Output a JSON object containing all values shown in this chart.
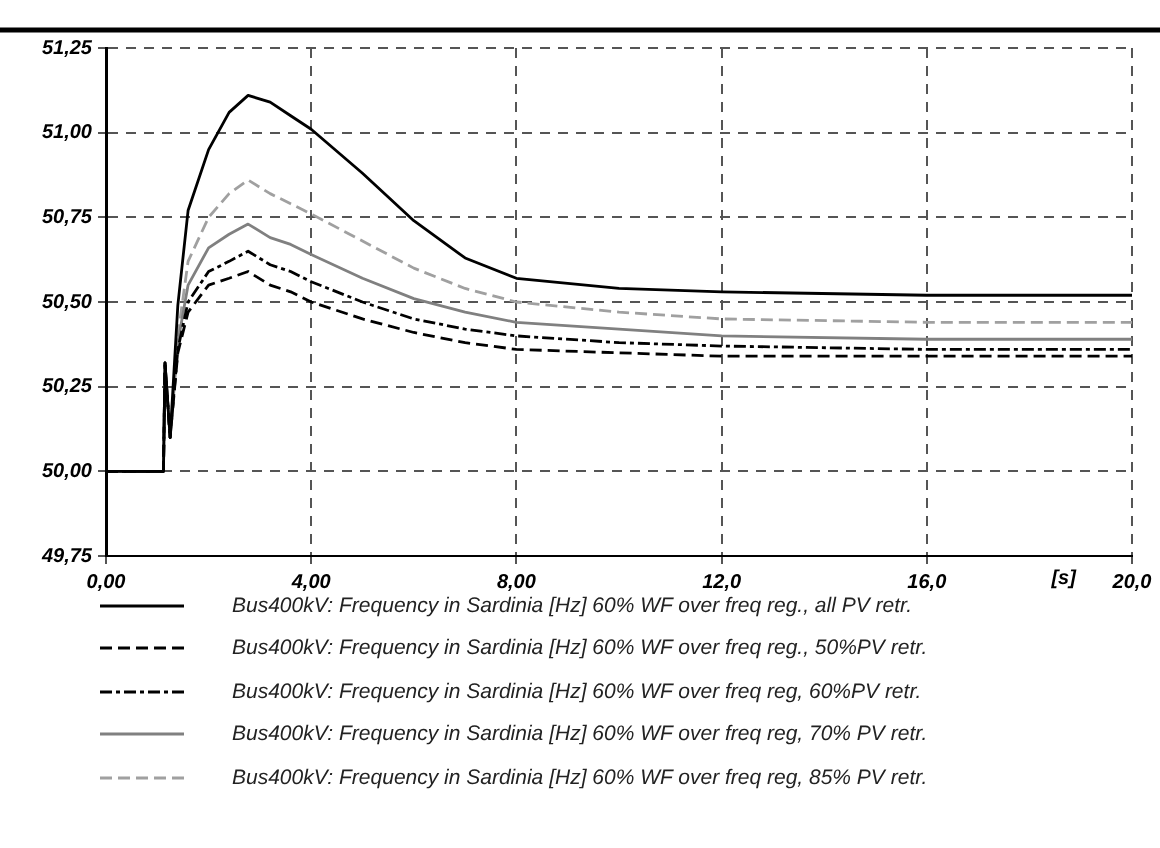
{
  "chart_data": {
    "type": "line",
    "xlabel": "[s]",
    "x": [
      0,
      1.12,
      1.15,
      1.25,
      1.4,
      1.6,
      2.0,
      2.4,
      2.77,
      3.2,
      3.6,
      4,
      5,
      6,
      7,
      8,
      10,
      12,
      16,
      20
    ],
    "series": [
      {
        "name": "Bus400kV: Frequency in Sardinia [Hz] 60% WF over freq reg., all PV retr.",
        "color": "#000000",
        "line_style": "solid",
        "values": [
          50,
          50,
          50.32,
          50.1,
          50.49,
          50.77,
          50.95,
          51.06,
          51.11,
          51.09,
          51.05,
          51.01,
          50.88,
          50.74,
          50.63,
          50.57,
          50.54,
          50.53,
          50.52,
          50.52
        ]
      },
      {
        "name": "Bus400kV: Frequency in Sardinia [Hz] 60% WF over freq reg., 50%PV retr.",
        "color": "#000000",
        "line_style": "dashed",
        "values": [
          50,
          50,
          50.32,
          50.1,
          50.35,
          50.47,
          50.55,
          50.57,
          50.59,
          50.55,
          50.53,
          50.5,
          50.45,
          50.41,
          50.38,
          50.36,
          50.35,
          50.34,
          50.34,
          50.34
        ]
      },
      {
        "name": "Bus400kV: Frequency in Sardinia [Hz] 60% WF over freq reg, 60%PV retr.",
        "color": "#000000",
        "line_style": "dashdot",
        "values": [
          50,
          50,
          50.32,
          50.1,
          50.36,
          50.5,
          50.59,
          50.62,
          50.65,
          50.61,
          50.59,
          50.56,
          50.5,
          50.45,
          50.42,
          50.4,
          50.38,
          50.37,
          50.36,
          50.36
        ]
      },
      {
        "name": "Bus400kV: Frequency in Sardinia [Hz] 60% WF over freq reg, 70% PV retr.",
        "color": "#808080",
        "line_style": "solid",
        "values": [
          50,
          50,
          50.32,
          50.1,
          50.38,
          50.55,
          50.66,
          50.7,
          50.73,
          50.69,
          50.67,
          50.64,
          50.57,
          50.51,
          50.47,
          50.44,
          50.42,
          50.4,
          50.39,
          50.39
        ]
      },
      {
        "name": "Bus400kV: Frequency in Sardinia [Hz] 60% WF over freq reg, 85% PV retr.",
        "color": "#a0a0a0",
        "line_style": "dashed",
        "values": [
          50,
          50,
          50.32,
          50.1,
          50.4,
          50.62,
          50.75,
          50.82,
          50.86,
          50.82,
          50.79,
          50.76,
          50.68,
          50.6,
          50.54,
          50.5,
          50.47,
          50.45,
          50.44,
          50.44
        ]
      }
    ],
    "xlim": [
      0,
      20
    ],
    "xticks": [
      {
        "value": 0,
        "label": "0,00"
      },
      {
        "value": 4,
        "label": "4,00"
      },
      {
        "value": 8,
        "label": "8,00"
      },
      {
        "value": 12,
        "label": "12,0"
      },
      {
        "value": 16,
        "label": "16,0"
      },
      {
        "value": 20,
        "label": "20,0"
      }
    ],
    "ylim": [
      49.75,
      51.25
    ],
    "yticks": [
      {
        "value": 49.75,
        "label": "49,75"
      },
      {
        "value": 50,
        "label": "50,00"
      },
      {
        "value": 50.25,
        "label": "50,25"
      },
      {
        "value": 50.5,
        "label": "50,50"
      },
      {
        "value": 50.75,
        "label": "50,75"
      },
      {
        "value": 51,
        "label": "51,00"
      },
      {
        "value": 51.25,
        "label": "51,25"
      }
    ],
    "grid": true,
    "legend": "bottom",
    "marker": "none"
  }
}
